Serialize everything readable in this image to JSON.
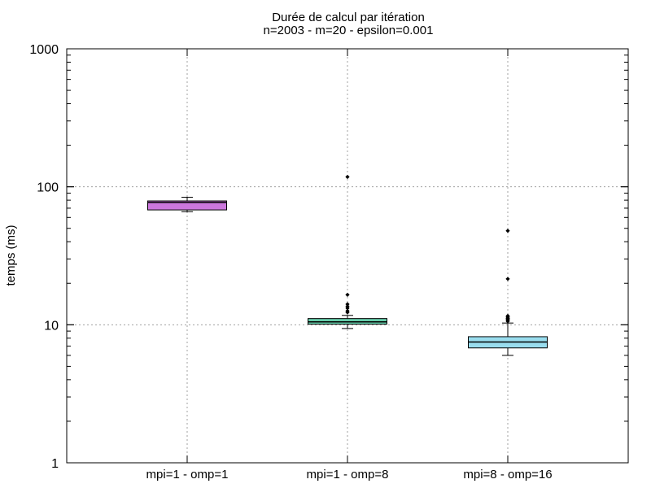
{
  "chart_data": {
    "type": "boxplot",
    "title": "Durée de calcul par itération",
    "subtitle": "n=2003 - m=20 - epsilon=0.001",
    "xlabel": "",
    "ylabel": "temps (ms)",
    "yscale": "log",
    "ylim": [
      1,
      1000
    ],
    "yticks": [
      1,
      10,
      100,
      1000
    ],
    "ytick_labels": [
      "1",
      "10",
      "100",
      "1000"
    ],
    "grid": true,
    "categories": [
      "mpi=1 - omp=1",
      "mpi=1 - omp=8",
      "mpi=8 - omp=16"
    ],
    "series": [
      {
        "name": "mpi=1 - omp=1",
        "color": "#cc77dd",
        "whisker_low": 66,
        "q1": 68,
        "median": 77,
        "q3": 79,
        "whisker_high": 84,
        "outliers": []
      },
      {
        "name": "mpi=1 - omp=8",
        "color": "#66ccaa",
        "whisker_low": 9.4,
        "q1": 10.1,
        "median": 10.5,
        "q3": 11.1,
        "whisker_high": 11.7,
        "outliers": [
          12.3,
          12.6,
          13.2,
          13.6,
          14.1,
          16.5,
          118
        ]
      },
      {
        "name": "mpi=8 - omp=16",
        "color": "#99ddee",
        "whisker_low": 6.0,
        "q1": 6.8,
        "median": 7.5,
        "q3": 8.2,
        "whisker_high": 10.3,
        "outliers": [
          10.6,
          10.8,
          11.0,
          11.1,
          11.2,
          11.4,
          11.6,
          21.5,
          48
        ]
      }
    ]
  }
}
